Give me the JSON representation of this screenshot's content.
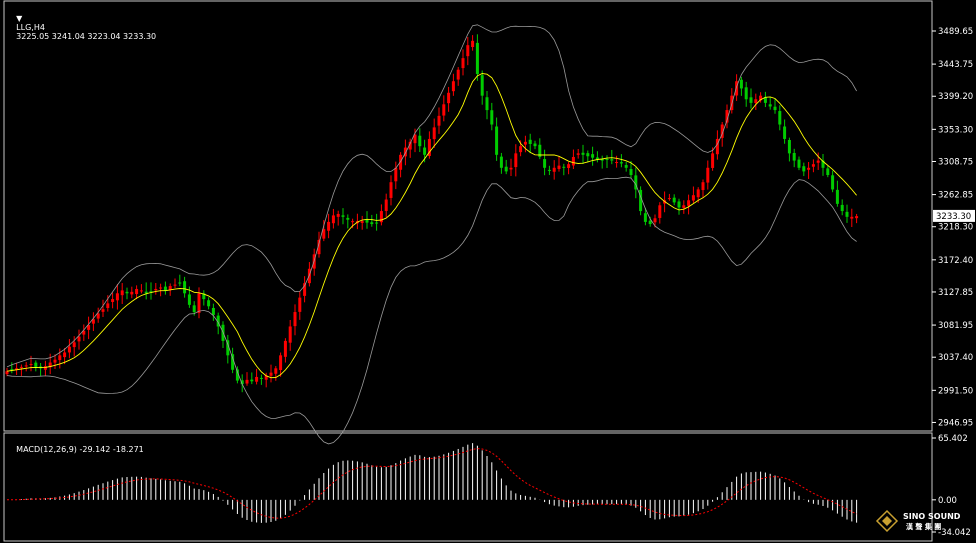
{
  "header": {
    "symbol": "LLG,H4",
    "ohlc": "3225.05 3241.04 3223.04 3233.30"
  },
  "price_axis": {
    "ticks": [
      "3489.65",
      "3443.75",
      "3399.20",
      "3353.30",
      "3308.75",
      "3262.85",
      "3218.30",
      "3172.40",
      "3127.85",
      "3081.95",
      "3037.40",
      "2991.50",
      "2946.95"
    ],
    "current": "3233.30"
  },
  "macd": {
    "label": "MACD(12,26,9) -29.142 -18.271",
    "ticks": [
      "65.402",
      "0.00",
      "-34.042"
    ]
  },
  "logo": {
    "brand": "SINO SOUND",
    "sub": "漢 聲 集 團"
  },
  "colors": {
    "bg": "#000000",
    "up": "#ff0000",
    "down": "#00cc00",
    "ma": "#ffff00",
    "band": "#9a9a9a",
    "macd_hist": "#ffffff",
    "macd_signal": "#ff0000"
  },
  "chart_data": [
    {
      "type": "candlestick",
      "title": "LLG,H4",
      "ylim": [
        2946.95,
        3510
      ],
      "indicators": [
        "Bollinger Bands",
        "Moving Average"
      ],
      "approx_closes": [
        3018,
        3020,
        3022,
        3024,
        3026,
        3028,
        3024,
        3022,
        3025,
        3030,
        3034,
        3040,
        3044,
        3052,
        3058,
        3066,
        3074,
        3082,
        3090,
        3098,
        3104,
        3112,
        3118,
        3126,
        3130,
        3126,
        3128,
        3132,
        3130,
        3126,
        3128,
        3132,
        3134,
        3130,
        3136,
        3138,
        3140,
        3126,
        3110,
        3100,
        3126,
        3118,
        3108,
        3096,
        3080,
        3060,
        3040,
        3020,
        3005,
        3000,
        3006,
        3004,
        3010,
        3008,
        3012,
        3016,
        3022,
        3040,
        3060,
        3080,
        3100,
        3120,
        3140,
        3160,
        3180,
        3200,
        3215,
        3225,
        3234,
        3236,
        3232,
        3228,
        3226,
        3226,
        3226,
        3224,
        3222,
        3224,
        3240,
        3256,
        3280,
        3300,
        3318,
        3328,
        3336,
        3346,
        3330,
        3318,
        3340,
        3356,
        3372,
        3388,
        3404,
        3420,
        3436,
        3452,
        3470,
        3476,
        3430,
        3400,
        3380,
        3360,
        3318,
        3300,
        3295,
        3300,
        3320,
        3330,
        3336,
        3333,
        3330,
        3315,
        3300,
        3296,
        3300,
        3303,
        3300,
        3305,
        3315,
        3320,
        3318,
        3316,
        3314,
        3312,
        3310,
        3311,
        3310,
        3308,
        3306,
        3300,
        3290,
        3270,
        3240,
        3225,
        3222,
        3230,
        3248,
        3255,
        3258,
        3252,
        3245,
        3248,
        3255,
        3262,
        3270,
        3280,
        3300,
        3320,
        3340,
        3360,
        3380,
        3400,
        3420,
        3410,
        3395,
        3390,
        3395,
        3400,
        3390,
        3385,
        3380,
        3360,
        3340,
        3320,
        3310,
        3300,
        3295,
        3300,
        3305,
        3310,
        3300,
        3290,
        3270,
        3250,
        3240,
        3232,
        3232,
        3233
      ]
    },
    {
      "type": "bar",
      "title": "MACD(12,26,9)",
      "series": [
        {
          "name": "MACD",
          "last": -29.142
        },
        {
          "name": "Signal",
          "last": -18.271
        }
      ],
      "ylim": [
        -34.042,
        65.402
      ]
    }
  ]
}
